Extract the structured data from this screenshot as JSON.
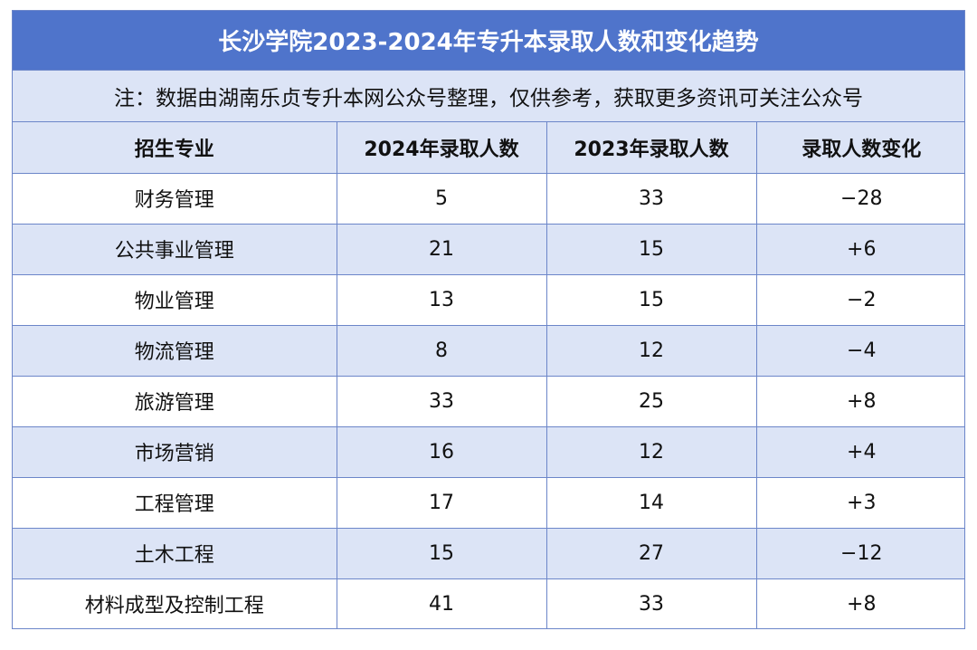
{
  "title": "长沙学院2023-2024年专升本录取人数和变化趋势",
  "note": "注：数据由湖南乐贞专升本网公众号整理，仅供参考，获取更多资讯可关注公众号",
  "table": {
    "headers": [
      "招生专业",
      "2024年录取人数",
      "2023年录取人数",
      "录取人数变化"
    ],
    "rows": [
      [
        "财务管理",
        "5",
        "33",
        "−28"
      ],
      [
        "公共事业管理",
        "21",
        "15",
        "+6"
      ],
      [
        "物业管理",
        "13",
        "15",
        "−2"
      ],
      [
        "物流管理",
        "8",
        "12",
        "−4"
      ],
      [
        "旅游管理",
        "33",
        "25",
        "+8"
      ],
      [
        "市场营销",
        "16",
        "12",
        "+4"
      ],
      [
        "工程管理",
        "17",
        "14",
        "+3"
      ],
      [
        "土木工程",
        "15",
        "27",
        "−12"
      ],
      [
        "材料成型及控制工程",
        "41",
        "33",
        "+8"
      ]
    ]
  },
  "colors": {
    "title_bg": "#4f74cb",
    "alt_row_bg": "#dce4f6",
    "border": "#6c86c9"
  }
}
